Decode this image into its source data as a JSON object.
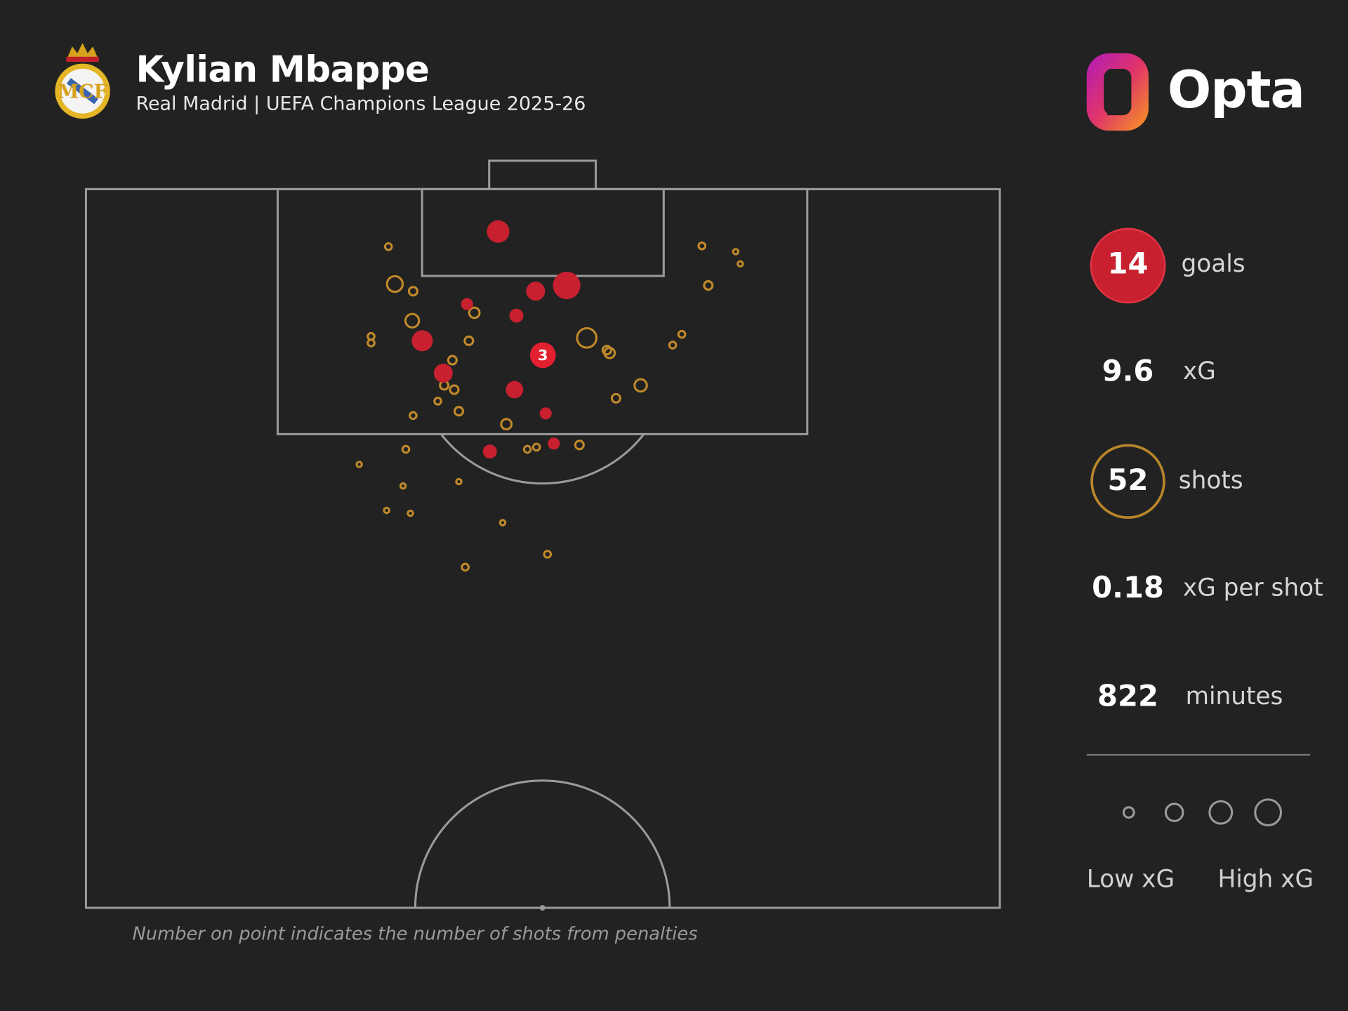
{
  "header": {
    "title": "Kylian Mbappe",
    "subtitle": "Real Madrid | UEFA Champions League 2025-26",
    "brand": "Opta",
    "club_crest": "Real Madrid crest"
  },
  "stats": [
    {
      "value": "14",
      "label": "goals"
    },
    {
      "value": "9.6",
      "label": "xG"
    },
    {
      "value": "52",
      "label": "shots"
    },
    {
      "value": "0.18",
      "label": "xG per shot"
    },
    {
      "value": "822",
      "label": "minutes"
    }
  ],
  "legend": {
    "low": "Low xG",
    "high": "High xG"
  },
  "footnote": "Number on point indicates the number of shots from penalties",
  "colors": {
    "background": "#222222",
    "goal": "#d42035",
    "miss": "#c08a2a",
    "lines": "#9a9a9a"
  },
  "chart_data": {
    "type": "scatter",
    "title": "Kylian Mbappe shot map",
    "x_axis": "pitch width, 0-100 (left to right)",
    "y_axis": "half-pitch length, 0-100 from goal line",
    "xlim": [
      0,
      100
    ],
    "ylim": [
      0,
      100
    ],
    "size": "xG",
    "series": [
      {
        "name": "goals",
        "points": [
          {
            "x": 45.1,
            "y": 5.9,
            "xg": 0.39
          },
          {
            "x": 49.2,
            "y": 14.2,
            "xg": 0.25
          },
          {
            "x": 52.6,
            "y": 13.4,
            "xg": 0.63
          },
          {
            "x": 41.7,
            "y": 16.0,
            "xg": 0.07
          },
          {
            "x": 47.1,
            "y": 17.6,
            "xg": 0.11
          },
          {
            "x": 36.8,
            "y": 21.1,
            "xg": 0.33
          },
          {
            "x": 50.0,
            "y": 23.1,
            "xg": 0.54,
            "label": "3"
          },
          {
            "x": 39.1,
            "y": 25.6,
            "xg": 0.25
          },
          {
            "x": 46.9,
            "y": 27.9,
            "xg": 0.2
          },
          {
            "x": 50.3,
            "y": 31.2,
            "xg": 0.07
          },
          {
            "x": 44.2,
            "y": 36.5,
            "xg": 0.11
          },
          {
            "x": 51.2,
            "y": 35.4,
            "xg": 0.07
          }
        ]
      },
      {
        "name": "shots",
        "points": [
          {
            "x": 33.1,
            "y": 8.0,
            "xg": 0.02
          },
          {
            "x": 33.8,
            "y": 13.2,
            "xg": 0.2
          },
          {
            "x": 35.8,
            "y": 14.2,
            "xg": 0.04
          },
          {
            "x": 42.5,
            "y": 17.2,
            "xg": 0.07
          },
          {
            "x": 35.7,
            "y": 18.3,
            "xg": 0.14
          },
          {
            "x": 31.2,
            "y": 20.5,
            "xg": 0.02
          },
          {
            "x": 31.2,
            "y": 21.4,
            "xg": 0.02
          },
          {
            "x": 41.9,
            "y": 21.1,
            "xg": 0.04
          },
          {
            "x": 40.1,
            "y": 23.8,
            "xg": 0.04
          },
          {
            "x": 39.2,
            "y": 27.3,
            "xg": 0.04
          },
          {
            "x": 40.3,
            "y": 27.9,
            "xg": 0.04
          },
          {
            "x": 38.5,
            "y": 29.5,
            "xg": 0.02
          },
          {
            "x": 35.8,
            "y": 31.5,
            "xg": 0.02
          },
          {
            "x": 40.8,
            "y": 30.9,
            "xg": 0.04
          },
          {
            "x": 46.0,
            "y": 32.7,
            "xg": 0.07
          },
          {
            "x": 54.8,
            "y": 20.7,
            "xg": 0.33
          },
          {
            "x": 57.0,
            "y": 22.4,
            "xg": 0.04
          },
          {
            "x": 57.3,
            "y": 22.8,
            "xg": 0.07
          },
          {
            "x": 60.7,
            "y": 27.3,
            "xg": 0.11
          },
          {
            "x": 58.0,
            "y": 29.1,
            "xg": 0.04
          },
          {
            "x": 67.4,
            "y": 7.9,
            "xg": 0.02
          },
          {
            "x": 71.1,
            "y": 8.7,
            "xg": 0.008
          },
          {
            "x": 71.6,
            "y": 10.4,
            "xg": 0.008
          },
          {
            "x": 68.1,
            "y": 13.4,
            "xg": 0.04
          },
          {
            "x": 65.2,
            "y": 20.2,
            "xg": 0.02
          },
          {
            "x": 64.2,
            "y": 21.7,
            "xg": 0.02
          },
          {
            "x": 35.0,
            "y": 36.2,
            "xg": 0.02
          },
          {
            "x": 29.9,
            "y": 38.3,
            "xg": 0.003
          },
          {
            "x": 48.3,
            "y": 36.2,
            "xg": 0.02
          },
          {
            "x": 49.3,
            "y": 35.9,
            "xg": 0.02
          },
          {
            "x": 54.0,
            "y": 35.6,
            "xg": 0.04
          },
          {
            "x": 40.8,
            "y": 40.7,
            "xg": 0.008
          },
          {
            "x": 34.7,
            "y": 41.3,
            "xg": 0.008
          },
          {
            "x": 32.9,
            "y": 44.7,
            "xg": 0.008
          },
          {
            "x": 35.5,
            "y": 45.1,
            "xg": 0.008
          },
          {
            "x": 45.6,
            "y": 46.4,
            "xg": 0.008
          },
          {
            "x": 50.5,
            "y": 50.8,
            "xg": 0.02
          },
          {
            "x": 41.5,
            "y": 52.6,
            "xg": 0.02
          }
        ]
      }
    ]
  }
}
